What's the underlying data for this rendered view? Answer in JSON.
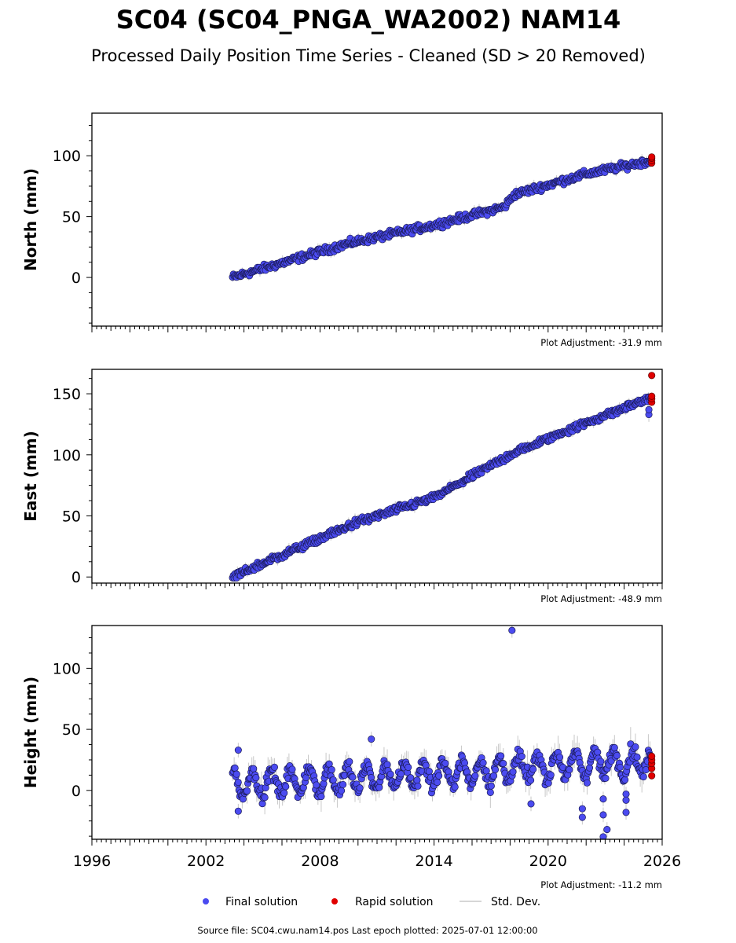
{
  "title": "SC04 (SC04_PNGA_WA2002) NAM14",
  "subtitle": "Processed Daily Position Time Series - Cleaned (SD > 20 Removed)",
  "legend": {
    "final": "Final solution",
    "rapid": "Rapid solution",
    "std": "Std. Dev."
  },
  "footer": "Source file: SC04.cwu.nam14.pos  Last epoch plotted: 2025-07-01 12:00:00",
  "colors": {
    "final": "#4b4bf0",
    "final_edge": "#1a1a55",
    "rapid": "#e00000",
    "std": "#c8c8c8"
  },
  "chart_data": [
    {
      "type": "scatter",
      "ylabel": "North (mm)",
      "adjustment": "Plot Adjustment: -31.9 mm",
      "xlim": [
        1996,
        2026
      ],
      "ylim": [
        -40,
        135
      ],
      "yticks": [
        0,
        50,
        100
      ],
      "trend": [
        [
          2003.4,
          0
        ],
        [
          2009.5,
          28
        ],
        [
          2014,
          43
        ],
        [
          2017.7,
          58
        ],
        [
          2018.2,
          68
        ],
        [
          2022,
          85
        ],
        [
          2025.4,
          96
        ]
      ],
      "noise": 2.5,
      "rapid": [
        94,
        96,
        98,
        99
      ],
      "outliers": []
    },
    {
      "type": "scatter",
      "ylabel": "East (mm)",
      "adjustment": "Plot Adjustment: -48.9 mm",
      "xlim": [
        1996,
        2026
      ],
      "ylim": [
        -5,
        170
      ],
      "yticks": [
        0,
        50,
        100,
        150
      ],
      "trend": [
        [
          2003.4,
          0
        ],
        [
          2006,
          18
        ],
        [
          2010,
          45
        ],
        [
          2014,
          65
        ],
        [
          2018,
          100
        ],
        [
          2021,
          120
        ],
        [
          2025.4,
          147
        ]
      ],
      "noise": 2.5,
      "rapid": [
        143,
        146,
        148,
        165
      ],
      "outliers": [
        [
          2025.3,
          133
        ],
        [
          2025.3,
          137
        ]
      ]
    },
    {
      "type": "scatter",
      "ylabel": "Height (mm)",
      "adjustment": "Plot Adjustment: -11.2 mm",
      "xlim": [
        1996,
        2026
      ],
      "ylim": [
        -40,
        135
      ],
      "yticks": [
        0,
        50,
        100
      ],
      "xticks": [
        1996,
        2002,
        2008,
        2014,
        2020,
        2026
      ],
      "trend": [
        [
          2003.4,
          5
        ],
        [
          2010,
          10
        ],
        [
          2016,
          15
        ],
        [
          2020,
          20
        ],
        [
          2025.4,
          24
        ]
      ],
      "noise": 4,
      "seasonal": 10,
      "rapid": [
        12,
        18,
        22,
        25,
        28
      ],
      "outliers": [
        [
          2018.1,
          131
        ],
        [
          2010.7,
          42
        ],
        [
          2021.8,
          -15
        ],
        [
          2021.8,
          -22
        ],
        [
          2022.9,
          -7
        ],
        [
          2022.9,
          -20
        ],
        [
          2023.1,
          -32
        ],
        [
          2022.9,
          -38
        ],
        [
          2019.1,
          -11
        ],
        [
          2024.1,
          -3
        ],
        [
          2024.1,
          -8
        ],
        [
          2024.1,
          -18
        ],
        [
          2003.7,
          -17
        ],
        [
          2003.7,
          33
        ]
      ]
    }
  ]
}
